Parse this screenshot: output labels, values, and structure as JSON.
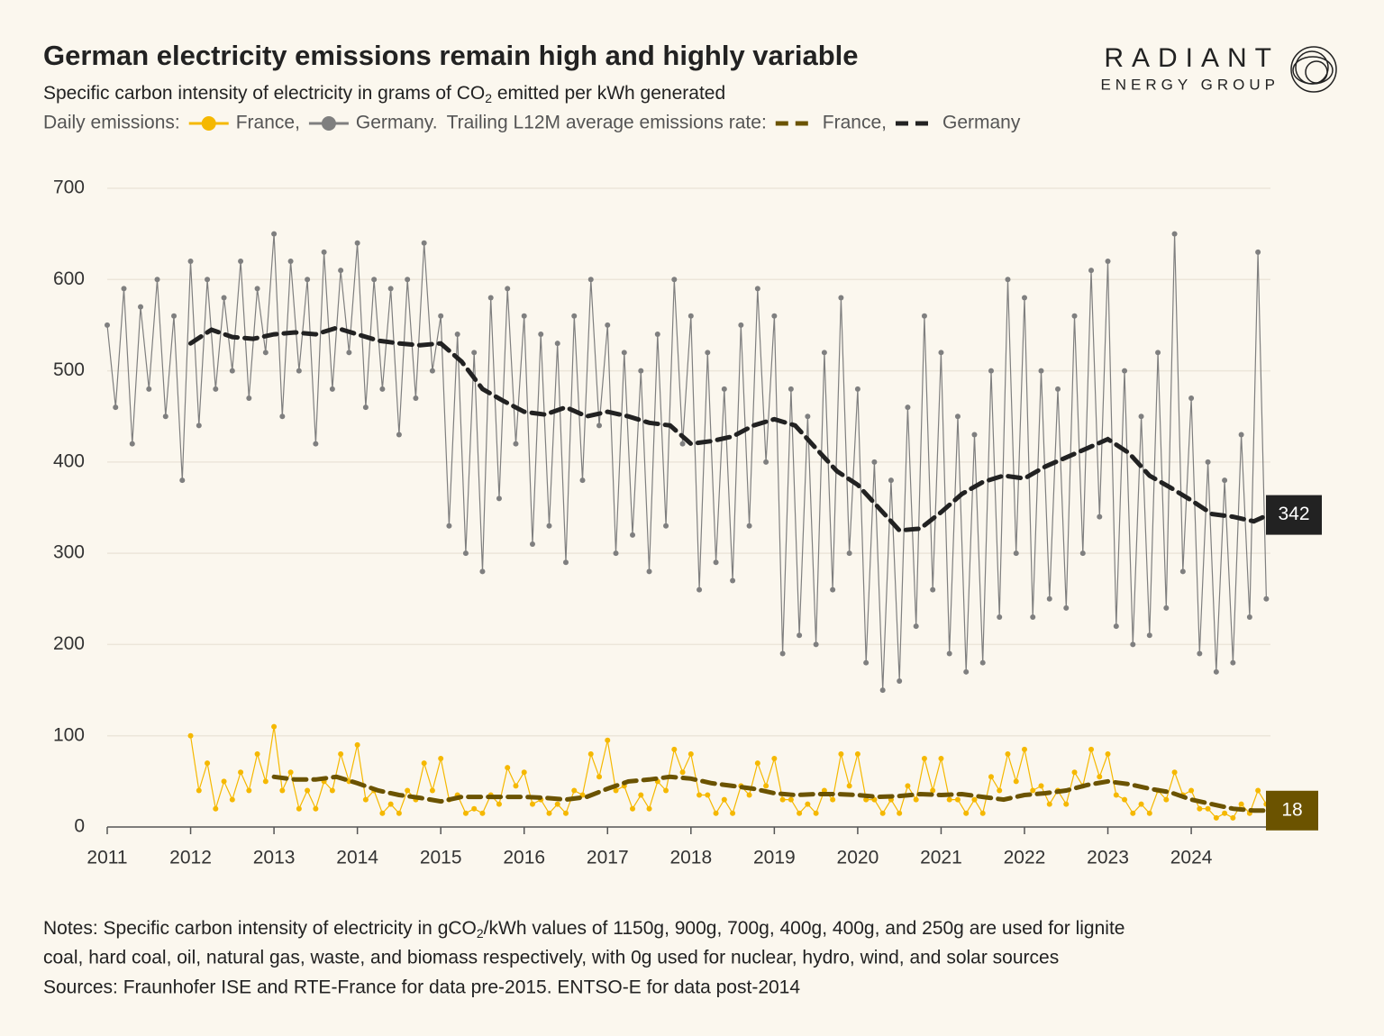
{
  "chart_data": {
    "type": "line",
    "title": "German electricity emissions remain high and highly variable",
    "subtitle": [
      "Specific carbon intensity of electricity in grams of CO",
      "2",
      " emitted per kWh generated"
    ],
    "legend_labels": [
      "Daily emissions:",
      "Trailing L12M average emissions rate:"
    ],
    "logo": [
      "RADIANT",
      "ENERGY GROUP"
    ],
    "notes": {
      "line1": [
        "Notes: Specific carbon intensity of electricity in gCO",
        "2",
        "/kWh values of 1150g, 900g, 700g, 400g, 400g, and 250g are used for lignite"
      ],
      "line2": "coal, hard coal, oil, natural gas, waste, and biomass respectively, with 0g used for nuclear, hydro, wind, and solar sources",
      "sources": "Sources: Fraunhofer ISE and RTE-France for data pre-2015. ENTSO-E for data post-2014"
    },
    "xlim": [
      2011,
      2024.95
    ],
    "xticks": [
      2011,
      2012,
      2013,
      2014,
      2015,
      2016,
      2017,
      2018,
      2019,
      2020,
      2021,
      2022,
      2023,
      2024
    ],
    "ylim": [
      0,
      700
    ],
    "yticks": [
      0,
      100,
      200,
      300,
      400,
      500,
      600,
      700
    ],
    "grid": true,
    "series": [
      {
        "name": "France,",
        "color": "#f5b800",
        "style": "dots",
        "x": [
          2012.0,
          2012.1,
          2012.2,
          2012.3,
          2012.4,
          2012.5,
          2012.6,
          2012.7,
          2012.8,
          2012.9,
          2013.0,
          2013.1,
          2013.2,
          2013.3,
          2013.4,
          2013.5,
          2013.6,
          2013.7,
          2013.8,
          2013.9,
          2014.0,
          2014.1,
          2014.2,
          2014.3,
          2014.4,
          2014.5,
          2014.6,
          2014.7,
          2014.8,
          2014.9,
          2015.0,
          2015.1,
          2015.2,
          2015.3,
          2015.4,
          2015.5,
          2015.6,
          2015.7,
          2015.8,
          2015.9,
          2016.0,
          2016.1,
          2016.2,
          2016.3,
          2016.4,
          2016.5,
          2016.6,
          2016.7,
          2016.8,
          2016.9,
          2017.0,
          2017.1,
          2017.2,
          2017.3,
          2017.4,
          2017.5,
          2017.6,
          2017.7,
          2017.8,
          2017.9,
          2018.0,
          2018.1,
          2018.2,
          2018.3,
          2018.4,
          2018.5,
          2018.6,
          2018.7,
          2018.8,
          2018.9,
          2019.0,
          2019.1,
          2019.2,
          2019.3,
          2019.4,
          2019.5,
          2019.6,
          2019.7,
          2019.8,
          2019.9,
          2020.0,
          2020.1,
          2020.2,
          2020.3,
          2020.4,
          2020.5,
          2020.6,
          2020.7,
          2020.8,
          2020.9,
          2021.0,
          2021.1,
          2021.2,
          2021.3,
          2021.4,
          2021.5,
          2021.6,
          2021.7,
          2021.8,
          2021.9,
          2022.0,
          2022.1,
          2022.2,
          2022.3,
          2022.4,
          2022.5,
          2022.6,
          2022.7,
          2022.8,
          2022.9,
          2023.0,
          2023.1,
          2023.2,
          2023.3,
          2023.4,
          2023.5,
          2023.6,
          2023.7,
          2023.8,
          2023.9,
          2024.0,
          2024.1,
          2024.2,
          2024.3,
          2024.4,
          2024.5,
          2024.6,
          2024.7,
          2024.8,
          2024.9
        ],
        "values": [
          100,
          40,
          70,
          20,
          50,
          30,
          60,
          40,
          80,
          50,
          110,
          40,
          60,
          20,
          40,
          20,
          50,
          40,
          80,
          50,
          90,
          30,
          40,
          15,
          25,
          15,
          40,
          30,
          70,
          40,
          75,
          30,
          35,
          15,
          20,
          15,
          35,
          25,
          65,
          45,
          60,
          25,
          30,
          15,
          25,
          15,
          40,
          35,
          80,
          55,
          95,
          40,
          45,
          20,
          35,
          20,
          50,
          40,
          85,
          60,
          80,
          35,
          35,
          15,
          30,
          15,
          45,
          35,
          70,
          45,
          75,
          30,
          30,
          15,
          25,
          15,
          40,
          30,
          80,
          45,
          80,
          30,
          30,
          15,
          30,
          15,
          45,
          30,
          75,
          40,
          75,
          30,
          30,
          15,
          30,
          15,
          55,
          40,
          80,
          50,
          85,
          40,
          45,
          25,
          40,
          25,
          60,
          45,
          85,
          55,
          80,
          35,
          30,
          15,
          25,
          15,
          40,
          30,
          60,
          35,
          40,
          20,
          20,
          10,
          15,
          10,
          25,
          15,
          40,
          25
        ]
      },
      {
        "name": "Germany.",
        "color": "#7f7f7f",
        "style": "dots",
        "x": [
          2011.0,
          2011.1,
          2011.2,
          2011.3,
          2011.4,
          2011.5,
          2011.6,
          2011.7,
          2011.8,
          2011.9,
          2012.0,
          2012.1,
          2012.2,
          2012.3,
          2012.4,
          2012.5,
          2012.6,
          2012.7,
          2012.8,
          2012.9,
          2013.0,
          2013.1,
          2013.2,
          2013.3,
          2013.4,
          2013.5,
          2013.6,
          2013.7,
          2013.8,
          2013.9,
          2014.0,
          2014.1,
          2014.2,
          2014.3,
          2014.4,
          2014.5,
          2014.6,
          2014.7,
          2014.8,
          2014.9,
          2015.0,
          2015.1,
          2015.2,
          2015.3,
          2015.4,
          2015.5,
          2015.6,
          2015.7,
          2015.8,
          2015.9,
          2016.0,
          2016.1,
          2016.2,
          2016.3,
          2016.4,
          2016.5,
          2016.6,
          2016.7,
          2016.8,
          2016.9,
          2017.0,
          2017.1,
          2017.2,
          2017.3,
          2017.4,
          2017.5,
          2017.6,
          2017.7,
          2017.8,
          2017.9,
          2018.0,
          2018.1,
          2018.2,
          2018.3,
          2018.4,
          2018.5,
          2018.6,
          2018.7,
          2018.8,
          2018.9,
          2019.0,
          2019.1,
          2019.2,
          2019.3,
          2019.4,
          2019.5,
          2019.6,
          2019.7,
          2019.8,
          2019.9,
          2020.0,
          2020.1,
          2020.2,
          2020.3,
          2020.4,
          2020.5,
          2020.6,
          2020.7,
          2020.8,
          2020.9,
          2021.0,
          2021.1,
          2021.2,
          2021.3,
          2021.4,
          2021.5,
          2021.6,
          2021.7,
          2021.8,
          2021.9,
          2022.0,
          2022.1,
          2022.2,
          2022.3,
          2022.4,
          2022.5,
          2022.6,
          2022.7,
          2022.8,
          2022.9,
          2023.0,
          2023.1,
          2023.2,
          2023.3,
          2023.4,
          2023.5,
          2023.6,
          2023.7,
          2023.8,
          2023.9,
          2024.0,
          2024.1,
          2024.2,
          2024.3,
          2024.4,
          2024.5,
          2024.6,
          2024.7,
          2024.8,
          2024.9
        ],
        "values": [
          550,
          460,
          590,
          420,
          570,
          480,
          600,
          450,
          560,
          380,
          620,
          440,
          600,
          480,
          580,
          500,
          620,
          470,
          590,
          520,
          650,
          450,
          620,
          500,
          600,
          420,
          630,
          480,
          610,
          520,
          640,
          460,
          600,
          480,
          590,
          430,
          600,
          470,
          640,
          500,
          560,
          330,
          540,
          300,
          520,
          280,
          580,
          360,
          590,
          420,
          560,
          310,
          540,
          330,
          530,
          290,
          560,
          380,
          600,
          440,
          550,
          300,
          520,
          320,
          500,
          280,
          540,
          330,
          600,
          420,
          560,
          260,
          520,
          290,
          480,
          270,
          550,
          330,
          590,
          400,
          560,
          190,
          480,
          210,
          450,
          200,
          520,
          260,
          580,
          300,
          480,
          180,
          400,
          150,
          380,
          160,
          460,
          220,
          560,
          260,
          520,
          190,
          450,
          170,
          430,
          180,
          500,
          230,
          600,
          300,
          580,
          230,
          500,
          250,
          480,
          240,
          560,
          300,
          610,
          340,
          620,
          220,
          500,
          200,
          450,
          210,
          520,
          240,
          650,
          280,
          470,
          190,
          400,
          170,
          380,
          180,
          430,
          230,
          630,
          250
        ]
      },
      {
        "name": "France,",
        "color": "#6b5300",
        "style": "dashed",
        "x": [
          2013.0,
          2013.25,
          2013.5,
          2013.75,
          2014.0,
          2014.25,
          2014.5,
          2014.75,
          2015.0,
          2015.25,
          2015.5,
          2015.75,
          2016.0,
          2016.25,
          2016.5,
          2016.75,
          2017.0,
          2017.25,
          2017.5,
          2017.75,
          2018.0,
          2018.25,
          2018.5,
          2018.75,
          2019.0,
          2019.25,
          2019.5,
          2019.75,
          2020.0,
          2020.25,
          2020.5,
          2020.75,
          2021.0,
          2021.25,
          2021.5,
          2021.75,
          2022.0,
          2022.25,
          2022.5,
          2022.75,
          2023.0,
          2023.25,
          2023.5,
          2023.75,
          2024.0,
          2024.25,
          2024.5,
          2024.75,
          2024.92
        ],
        "values": [
          55,
          52,
          52,
          55,
          48,
          40,
          35,
          32,
          28,
          33,
          33,
          33,
          33,
          32,
          30,
          33,
          42,
          50,
          52,
          55,
          53,
          48,
          45,
          42,
          37,
          35,
          36,
          36,
          35,
          33,
          34,
          36,
          35,
          36,
          33,
          30,
          35,
          37,
          40,
          46,
          50,
          47,
          42,
          38,
          30,
          25,
          20,
          18,
          18
        ]
      },
      {
        "name": "Germany",
        "color": "#222222",
        "style": "dashed",
        "x": [
          2012.0,
          2012.25,
          2012.5,
          2012.75,
          2013.0,
          2013.25,
          2013.5,
          2013.75,
          2014.0,
          2014.25,
          2014.5,
          2014.75,
          2015.0,
          2015.25,
          2015.5,
          2015.75,
          2016.0,
          2016.25,
          2016.5,
          2016.75,
          2017.0,
          2017.25,
          2017.5,
          2017.75,
          2018.0,
          2018.25,
          2018.5,
          2018.75,
          2019.0,
          2019.25,
          2019.5,
          2019.75,
          2020.0,
          2020.25,
          2020.5,
          2020.75,
          2021.0,
          2021.25,
          2021.5,
          2021.75,
          2022.0,
          2022.25,
          2022.5,
          2022.75,
          2023.0,
          2023.25,
          2023.5,
          2023.75,
          2024.0,
          2024.25,
          2024.5,
          2024.75,
          2024.92
        ],
        "values": [
          530,
          545,
          537,
          535,
          540,
          542,
          540,
          547,
          540,
          533,
          530,
          528,
          530,
          510,
          480,
          467,
          455,
          452,
          460,
          450,
          455,
          450,
          443,
          440,
          420,
          423,
          428,
          440,
          447,
          440,
          415,
          390,
          375,
          350,
          325,
          327,
          345,
          365,
          378,
          385,
          382,
          395,
          405,
          415,
          425,
          410,
          385,
          372,
          358,
          343,
          340,
          335,
          342
        ]
      }
    ]
  }
}
